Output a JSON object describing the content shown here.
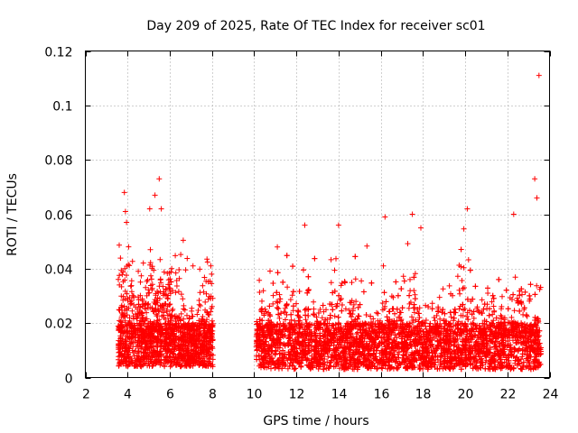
{
  "chart_data": {
    "type": "scatter",
    "title": "Day 209 of 2025, Rate Of TEC Index for receiver sc01",
    "xlabel": "GPS time / hours",
    "ylabel": "ROTI / TECUs",
    "xlim": [
      2,
      24
    ],
    "ylim": [
      0,
      0.12
    ],
    "xticks": [
      "2",
      "4",
      "6",
      "8",
      "10",
      "12",
      "14",
      "16",
      "18",
      "20",
      "22",
      "24"
    ],
    "yticks": [
      "0",
      "0.02",
      "0.04",
      "0.06",
      "0.08",
      "0.1",
      "0.12"
    ],
    "grid": true,
    "marker": "+",
    "color": "#ff0000",
    "series": [
      {
        "name": "ROTI",
        "segments": [
          {
            "start_hour": 3.55,
            "end_hour": 8.05,
            "base_low": 0.004,
            "base_high": 0.02
          },
          {
            "start_hour": 10.1,
            "end_hour": 23.6,
            "base_low": 0.003,
            "base_high": 0.02
          }
        ],
        "notable_points": [
          {
            "x": 3.85,
            "y": 0.068
          },
          {
            "x": 3.9,
            "y": 0.061
          },
          {
            "x": 3.95,
            "y": 0.057
          },
          {
            "x": 5.05,
            "y": 0.062
          },
          {
            "x": 5.3,
            "y": 0.067
          },
          {
            "x": 5.5,
            "y": 0.073
          },
          {
            "x": 5.6,
            "y": 0.062
          },
          {
            "x": 7.1,
            "y": 0.041
          },
          {
            "x": 7.95,
            "y": 0.041
          },
          {
            "x": 11.1,
            "y": 0.048
          },
          {
            "x": 12.4,
            "y": 0.056
          },
          {
            "x": 14.0,
            "y": 0.056
          },
          {
            "x": 16.2,
            "y": 0.059
          },
          {
            "x": 17.5,
            "y": 0.06
          },
          {
            "x": 17.9,
            "y": 0.055
          },
          {
            "x": 20.1,
            "y": 0.062
          },
          {
            "x": 22.3,
            "y": 0.06
          },
          {
            "x": 23.3,
            "y": 0.073
          },
          {
            "x": 23.4,
            "y": 0.066
          },
          {
            "x": 23.5,
            "y": 0.111
          }
        ]
      }
    ]
  }
}
